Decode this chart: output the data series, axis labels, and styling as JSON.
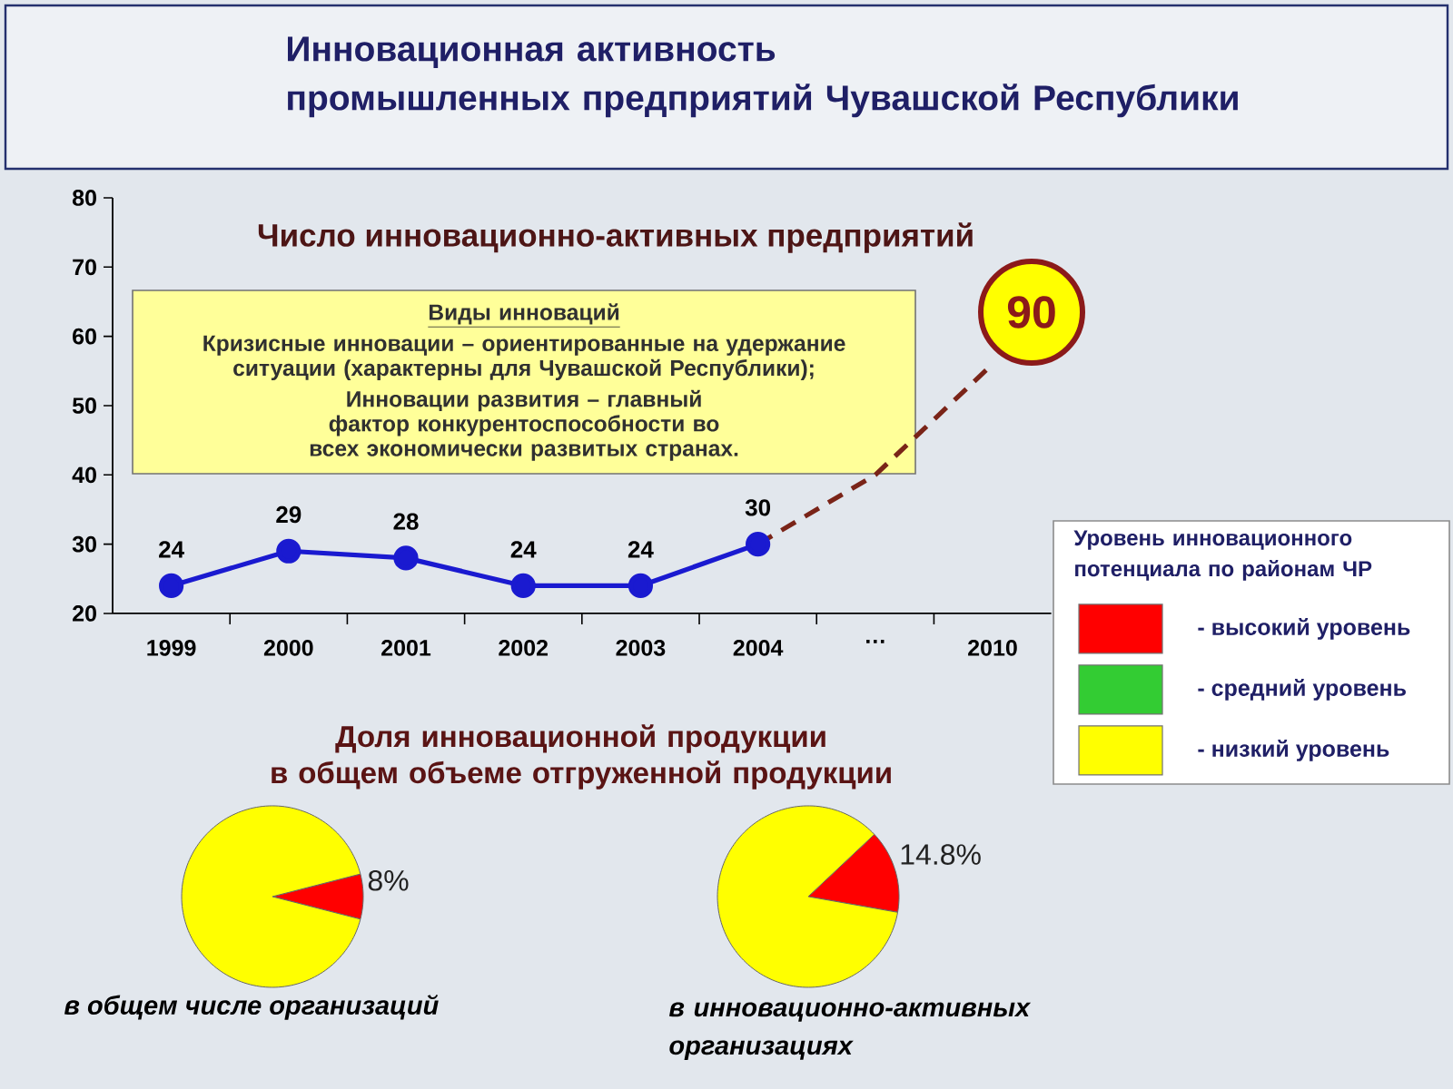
{
  "chart_data": [
    {
      "type": "line",
      "title": "Инновационная активность промышленных предприятий Чувашской Республики",
      "subtitle": "Число инновационно-активных предприятий",
      "categories": [
        "1999",
        "2000",
        "2001",
        "2002",
        "2003",
        "2004",
        "…",
        "2010"
      ],
      "ylim": [
        20,
        80
      ],
      "yticks": [
        20,
        30,
        40,
        50,
        60,
        70,
        80
      ],
      "series": [
        {
          "color": "#1a1ad0",
          "values": [
            24,
            29,
            28,
            24,
            24,
            30,
            null,
            null
          ],
          "marker": "circle",
          "line_style": "solid",
          "value_labels": [
            "24",
            "29",
            "28",
            "24",
            "24",
            "30",
            null,
            null
          ]
        },
        {
          "color": "#7a2418",
          "values": [
            null,
            null,
            null,
            null,
            null,
            30,
            40,
            56
          ],
          "marker": "none",
          "line_style": "dashed"
        }
      ],
      "annotations": [
        "Виды инноваций",
        "Кризисные инновации – ориентированные на удержание ситуации (характерны для Чувашской Республики);",
        "Инновации развития – главный фактор конкурентоспособности во всех экономически развитых странах.",
        "90"
      ]
    },
    {
      "type": "other",
      "title": "Уровень инновационного потенциала по районам ЧР",
      "categories": [
        "- высокий уровень",
        "- средний уровень",
        "- низкий уровень"
      ],
      "colors": [
        "#ff0000",
        "#33cc33",
        "#ffff00"
      ]
    },
    {
      "type": "pie",
      "title": "Доля инновационной продукции в общем объеме отгруженной продукции",
      "xlabel": "в общем числе организаций",
      "categories": [
        null,
        null
      ],
      "values": [
        8,
        92
      ],
      "colors": [
        "#ff0000",
        "#ffff00"
      ],
      "value_labels": [
        "8%",
        null
      ]
    },
    {
      "type": "pie",
      "xlabel": "в инновационно-активных организациях",
      "categories": [
        null,
        null
      ],
      "values": [
        14.8,
        85.2
      ],
      "colors": [
        "#ff0000",
        "#ffff00"
      ],
      "value_labels": [
        "14.8%",
        null
      ]
    }
  ]
}
